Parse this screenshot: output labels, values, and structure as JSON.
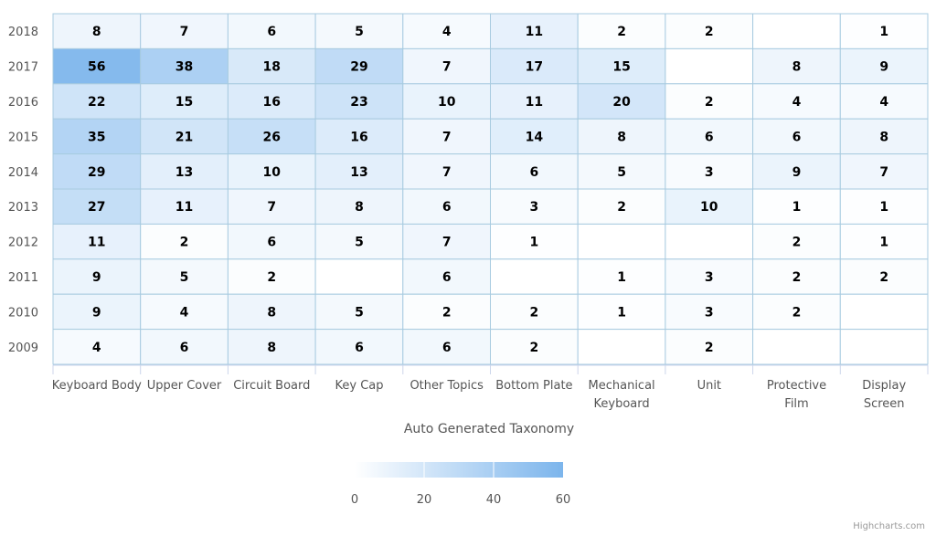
{
  "chart_data": {
    "type": "heatmap",
    "x_categories": [
      "Keyboard Body",
      "Upper Cover",
      "Circuit Board",
      "Key Cap",
      "Other Topics",
      "Bottom Plate",
      "Mechanical Keyboard",
      "Unit",
      "Protective Film",
      "Display Screen"
    ],
    "y_categories": [
      "2018",
      "2017",
      "2016",
      "2015",
      "2014",
      "2013",
      "2012",
      "2011",
      "2010",
      "2009"
    ],
    "values": [
      [
        8,
        7,
        6,
        5,
        4,
        11,
        2,
        2,
        null,
        1
      ],
      [
        56,
        38,
        18,
        29,
        7,
        17,
        15,
        null,
        8,
        9
      ],
      [
        22,
        15,
        16,
        23,
        10,
        11,
        20,
        2,
        4,
        4
      ],
      [
        35,
        21,
        26,
        16,
        7,
        14,
        8,
        6,
        6,
        8
      ],
      [
        29,
        13,
        10,
        13,
        7,
        6,
        5,
        3,
        9,
        7
      ],
      [
        27,
        11,
        7,
        8,
        6,
        3,
        2,
        10,
        1,
        1
      ],
      [
        11,
        2,
        6,
        5,
        7,
        1,
        null,
        null,
        2,
        1
      ],
      [
        9,
        5,
        2,
        null,
        6,
        null,
        1,
        3,
        2,
        2
      ],
      [
        9,
        4,
        8,
        5,
        2,
        2,
        1,
        3,
        2,
        null
      ],
      [
        4,
        6,
        8,
        6,
        6,
        2,
        null,
        2,
        null,
        null
      ]
    ],
    "xlabel": "Auto Generated Taxonomy",
    "ylabel": "",
    "color_axis": {
      "min": 0,
      "max": 60,
      "ticks": [
        "0",
        "20",
        "40",
        "60"
      ],
      "min_color": "#ffffff",
      "max_color": "#7cb5ec"
    },
    "legend_position": "bottom",
    "cell_border_color": "#a8cbe0",
    "credit": "Highcharts.com"
  }
}
